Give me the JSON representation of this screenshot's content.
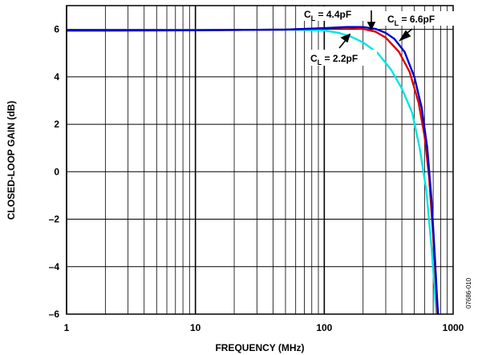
{
  "chart_data": {
    "type": "line",
    "title": "",
    "xlabel": "FREQUENCY (MHz)",
    "ylabel": "CLOSED-LOOP GAIN (dB)",
    "xscale": "log",
    "xlim": [
      1,
      1000
    ],
    "ylim": [
      -6,
      7
    ],
    "grid": true,
    "x_ticks": [
      "1",
      "10",
      "100",
      "1000"
    ],
    "y_ticks": [
      "6",
      "4",
      "2",
      "0",
      "–2",
      "–4",
      "–6"
    ],
    "series": [
      {
        "label_main": "C",
        "label_sub": "L",
        "label_rest": " = 2.2pF",
        "color": "#00e5e5",
        "x": [
          1,
          10,
          50,
          100,
          130,
          160,
          200,
          260,
          330,
          400,
          480,
          550,
          620,
          680,
          720,
          745,
          760
        ],
        "y": [
          5.95,
          5.97,
          5.99,
          5.95,
          5.85,
          5.7,
          5.45,
          5.0,
          4.3,
          3.5,
          2.5,
          1.0,
          -0.8,
          -3.2,
          -5.0,
          -6.3,
          -7.2
        ]
      },
      {
        "label_main": "C",
        "label_sub": "L",
        "label_rest": " = 4.4pF",
        "color": "#dd0000",
        "x": [
          1,
          10,
          50,
          100,
          150,
          200,
          250,
          300,
          380,
          460,
          540,
          600,
          650,
          700,
          740,
          765,
          780
        ],
        "y": [
          5.95,
          5.96,
          5.99,
          6.04,
          6.07,
          6.02,
          5.9,
          5.65,
          5.05,
          4.2,
          2.9,
          1.5,
          -0.2,
          -2.7,
          -5.0,
          -6.5,
          -7.3
        ]
      },
      {
        "label_main": "C",
        "label_sub": "L",
        "label_rest": " = 6.6pF",
        "color": "#0000cc",
        "x": [
          1,
          10,
          50,
          100,
          150,
          200,
          250,
          300,
          350,
          420,
          500,
          570,
          630,
          680,
          720,
          755,
          780,
          800
        ],
        "y": [
          5.95,
          5.96,
          5.99,
          6.05,
          6.1,
          6.1,
          6.02,
          5.85,
          5.6,
          5.05,
          4.0,
          2.7,
          1.0,
          -1.2,
          -3.5,
          -5.6,
          -6.6,
          -7.3
        ]
      }
    ],
    "side_code": "07686-010"
  }
}
